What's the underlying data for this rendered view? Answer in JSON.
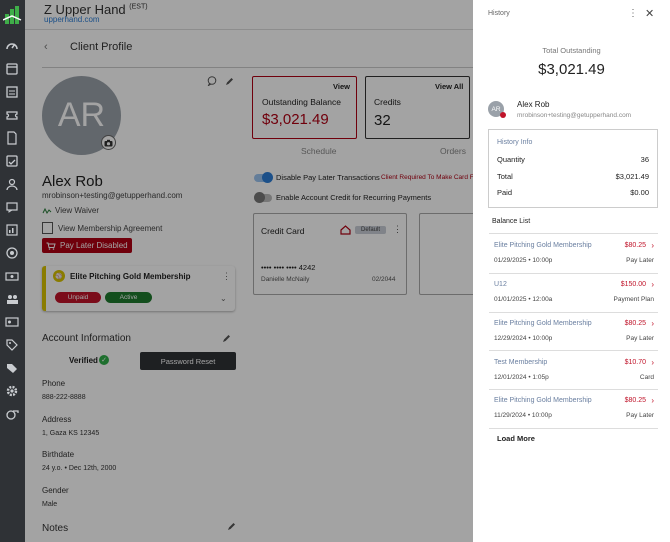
{
  "topbar": {
    "org_name": "Z Upper Hand",
    "org_tz": "(EST)",
    "org_url": "upperhand.com"
  },
  "sidebar": {
    "icons": [
      "dashboard-icon",
      "calendar-icon",
      "checklist-icon",
      "ticket-icon",
      "file-icon",
      "calendar-check-icon",
      "clients-icon",
      "messages-icon",
      "reports-icon",
      "marketing-icon",
      "money-icon",
      "team-icon",
      "id-card-icon",
      "catalog-icon",
      "tag-icon",
      "tags-icon",
      "settings-icon",
      "whistle-icon"
    ]
  },
  "header": {
    "back_icon": "chevron-left-icon",
    "title": "Client Profile"
  },
  "profile": {
    "initials": "AR",
    "name": "Alex Rob",
    "email": "mrobinson+testing@getupperhand.com",
    "view_waiver": "View Waiver",
    "view_membership": "View Membership Agreement",
    "pay_later_disabled": "Pay Later Disabled"
  },
  "membership_card": {
    "name": "Elite Pitching Gold Membership",
    "status_unpaid": "Unpaid",
    "status_active": "Active"
  },
  "account_info": {
    "title": "Account Information",
    "verified": "Verified",
    "password_reset": "Password Reset",
    "phone_label": "Phone",
    "phone": "888-222-8888",
    "address_label": "Address",
    "address": "1, Gaza KS 12345",
    "birthdate_label": "Birthdate",
    "birthdate": "24 y.o. • Dec 12th, 2000",
    "gender_label": "Gender",
    "gender": "Male"
  },
  "notes": {
    "title": "Notes"
  },
  "balance_card": {
    "link": "View",
    "label": "Outstanding Balance",
    "amount": "$3,021.49"
  },
  "credits_card": {
    "link": "View All",
    "label": "Credits",
    "count": "32"
  },
  "tabs": {
    "schedule": "Schedule",
    "orders": "Orders"
  },
  "toggles": {
    "pay_later": "Disable Pay Later Transactions",
    "card_required": "Client Required To Make Card F",
    "account_credit": "Enable Account Credit for Recurring Payments"
  },
  "payment_card": {
    "type": "Credit Card",
    "badge": "Default",
    "number": "•••• •••• •••• 4242",
    "holder": "Danielle McNaily",
    "expiry": "02/2044"
  },
  "history_panel": {
    "title": "History",
    "total_label": "Total Outstanding",
    "total_amount": "$3,021.49",
    "client_initials": "AR",
    "client_name": "Alex Rob",
    "client_email": "mrobinson+testing@getupperhand.com",
    "info": {
      "title": "History Info",
      "quantity_label": "Quantity",
      "quantity": "36",
      "total_label": "Total",
      "total": "$3,021.49",
      "paid_label": "Paid",
      "paid": "$0.00"
    },
    "balance_list_title": "Balance List",
    "balance_list": [
      {
        "name": "Elite Pitching Gold Membership",
        "amount": "$80.25",
        "date": "01/29/2025 • 10:00p",
        "type": "Pay Later"
      },
      {
        "name": "U12",
        "amount": "$150.00",
        "date": "01/01/2025 • 12:00a",
        "type": "Payment Plan"
      },
      {
        "name": "Elite Pitching Gold Membership",
        "amount": "$80.25",
        "date": "12/29/2024 • 10:00p",
        "type": "Pay Later"
      },
      {
        "name": "Test Membership",
        "amount": "$10.70",
        "date": "12/01/2024 • 1:05p",
        "type": "Card"
      },
      {
        "name": "Elite Pitching Gold Membership",
        "amount": "$80.25",
        "date": "11/29/2024 • 10:00p",
        "type": "Pay Later"
      }
    ],
    "load_more": "Load More"
  },
  "colors": {
    "sidebar": "#2f3236",
    "accent_red": "#b00014",
    "link_blue": "#2c7ed6",
    "active_green": "#1f7a2e",
    "toggle_on": "#2c7ed6"
  }
}
